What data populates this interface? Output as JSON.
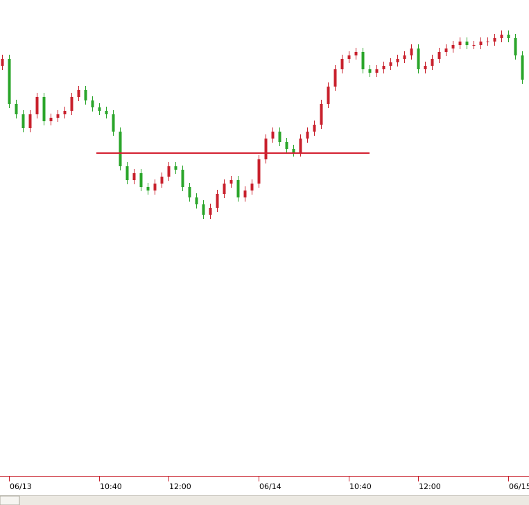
{
  "chart_data": {
    "type": "candlestick",
    "categories": [
      null,
      "06/13",
      null,
      null,
      null,
      null,
      null,
      null,
      null,
      null,
      null,
      null,
      null,
      null,
      "10:40",
      null,
      null,
      null,
      null,
      null,
      null,
      null,
      null,
      null,
      "12:00",
      null,
      null,
      null,
      null,
      null,
      null,
      null,
      null,
      null,
      null,
      null,
      null,
      "06/14",
      null,
      null,
      null,
      null,
      null,
      null,
      null,
      null,
      null,
      null,
      null,
      null,
      "10:40",
      null,
      null,
      null,
      null,
      null,
      null,
      null,
      null,
      null,
      "12:00",
      null,
      null,
      null,
      null,
      null,
      null,
      null,
      null,
      null,
      null,
      null,
      null,
      "06/15",
      null,
      null
    ],
    "open": [
      592,
      602,
      537,
      522,
      502,
      522,
      547,
      512,
      517,
      522,
      527,
      547,
      557,
      542,
      532,
      527,
      522,
      497,
      447,
      427,
      437,
      417,
      412,
      422,
      432,
      447,
      442,
      417,
      402,
      392,
      377,
      387,
      407,
      422,
      427,
      402,
      412,
      422,
      457,
      487,
      497,
      482,
      472,
      467,
      487,
      497,
      507,
      537,
      562,
      587,
      602,
      607,
      612,
      587,
      582,
      587,
      592,
      597,
      602,
      607,
      617,
      587,
      592,
      602,
      612,
      617,
      622,
      627,
      622,
      622,
      627,
      627,
      632,
      637,
      632,
      607
    ],
    "high": [
      608,
      608,
      543,
      528,
      528,
      553,
      553,
      523,
      528,
      533,
      553,
      563,
      563,
      548,
      538,
      533,
      528,
      503,
      453,
      443,
      443,
      423,
      428,
      438,
      453,
      453,
      448,
      423,
      408,
      398,
      393,
      413,
      428,
      433,
      433,
      418,
      428,
      463,
      493,
      503,
      503,
      488,
      478,
      493,
      503,
      513,
      543,
      568,
      593,
      608,
      613,
      618,
      618,
      593,
      593,
      598,
      603,
      608,
      613,
      623,
      623,
      598,
      608,
      618,
      623,
      628,
      633,
      633,
      628,
      633,
      633,
      638,
      643,
      643,
      638,
      613
    ],
    "low": [
      586,
      531,
      516,
      496,
      496,
      516,
      506,
      506,
      511,
      516,
      521,
      541,
      536,
      526,
      521,
      516,
      491,
      441,
      421,
      421,
      411,
      406,
      406,
      416,
      426,
      436,
      411,
      396,
      386,
      371,
      371,
      381,
      401,
      416,
      396,
      396,
      406,
      416,
      451,
      481,
      476,
      466,
      461,
      461,
      481,
      491,
      501,
      531,
      556,
      581,
      596,
      601,
      581,
      576,
      576,
      581,
      586,
      591,
      596,
      601,
      581,
      581,
      586,
      596,
      606,
      611,
      616,
      616,
      616,
      616,
      621,
      621,
      626,
      626,
      601,
      566
    ],
    "close": [
      602,
      537,
      522,
      502,
      522,
      547,
      512,
      517,
      522,
      527,
      547,
      557,
      542,
      532,
      527,
      522,
      497,
      447,
      427,
      437,
      417,
      412,
      422,
      432,
      447,
      442,
      417,
      402,
      392,
      377,
      387,
      407,
      422,
      427,
      402,
      412,
      422,
      457,
      487,
      497,
      482,
      472,
      467,
      487,
      497,
      507,
      537,
      562,
      587,
      602,
      607,
      612,
      587,
      582,
      587,
      592,
      597,
      602,
      607,
      617,
      587,
      592,
      602,
      612,
      617,
      622,
      627,
      622,
      622,
      627,
      627,
      632,
      637,
      632,
      607,
      572
    ],
    "up_color": "#c8202c",
    "down_color": "#2aa52a",
    "ylim": [
      0,
      687
    ],
    "hline": 466,
    "hline_color": "#d42030"
  }
}
